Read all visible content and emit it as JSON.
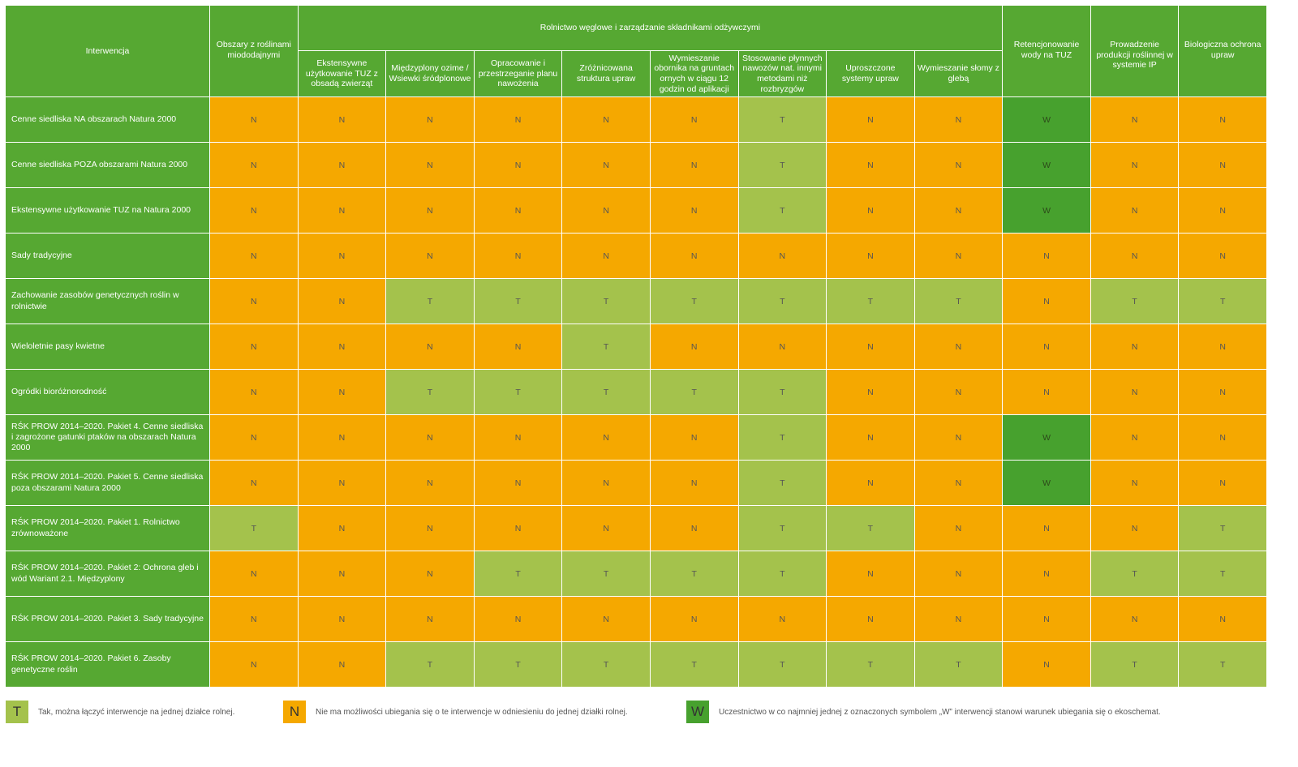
{
  "header": {
    "intervention": "Interwencja",
    "group": "Rolnictwo węglowe i zarządzanie składnikami odżywczymi",
    "columns": [
      "Obszary z roślinami miododajnymi",
      "Ekstensywne użytkowanie TUZ z obsadą zwierząt",
      "Międzyplony ozime / Wsiewki śródplonowe",
      "Opracowanie i przestrzeganie planu nawożenia",
      "Zróżnicowana struktura upraw",
      "Wymieszanie obornika na gruntach ornych w ciągu 12 godzin od aplikacji",
      "Stosowanie płynnych nawozów nat. innymi metodami niż rozbryzgów",
      "Uproszczone systemy upraw",
      "Wymieszanie słomy z glebą",
      "Retencjonowanie wody na TUZ",
      "Prowadzenie produkcji roślinnej w systemie IP",
      "Biologiczna ochrona upraw"
    ]
  },
  "rows": [
    {
      "label": "Cenne siedliska NA obszarach Natura 2000",
      "cells": [
        "N",
        "N",
        "N",
        "N",
        "N",
        "N",
        "T",
        "N",
        "N",
        "W",
        "N",
        "N"
      ]
    },
    {
      "label": "Cenne siedliska POZA obszarami Natura 2000",
      "cells": [
        "N",
        "N",
        "N",
        "N",
        "N",
        "N",
        "T",
        "N",
        "N",
        "W",
        "N",
        "N"
      ]
    },
    {
      "label": "Ekstensywne użytkowanie TUZ na Natura 2000",
      "cells": [
        "N",
        "N",
        "N",
        "N",
        "N",
        "N",
        "T",
        "N",
        "N",
        "W",
        "N",
        "N"
      ]
    },
    {
      "label": "Sady tradycyjne",
      "cells": [
        "N",
        "N",
        "N",
        "N",
        "N",
        "N",
        "N",
        "N",
        "N",
        "N",
        "N",
        "N"
      ]
    },
    {
      "label": "Zachowanie zasobów genetycznych roślin w rolnictwie",
      "cells": [
        "N",
        "N",
        "T",
        "T",
        "T",
        "T",
        "T",
        "T",
        "T",
        "N",
        "T",
        "T"
      ]
    },
    {
      "label": "Wieloletnie pasy kwietne",
      "cells": [
        "N",
        "N",
        "N",
        "N",
        "T",
        "N",
        "N",
        "N",
        "N",
        "N",
        "N",
        "N"
      ]
    },
    {
      "label": "Ogródki bioróżnorodność",
      "cells": [
        "N",
        "N",
        "T",
        "T",
        "T",
        "T",
        "T",
        "N",
        "N",
        "N",
        "N",
        "N"
      ]
    },
    {
      "label": "RŚK PROW 2014–2020. Pakiet 4. Cenne siedliska i zagrożone gatunki ptaków na obszarach Natura 2000",
      "cells": [
        "N",
        "N",
        "N",
        "N",
        "N",
        "N",
        "T",
        "N",
        "N",
        "W",
        "N",
        "N"
      ]
    },
    {
      "label": "RŚK PROW 2014–2020. Pakiet 5. Cenne siedliska poza obszarami Natura 2000",
      "cells": [
        "N",
        "N",
        "N",
        "N",
        "N",
        "N",
        "T",
        "N",
        "N",
        "W",
        "N",
        "N"
      ]
    },
    {
      "label": "RŚK PROW 2014–2020. Pakiet 1. Rolnictwo zrównoważone",
      "cells": [
        "T",
        "N",
        "N",
        "N",
        "N",
        "N",
        "T",
        "T",
        "N",
        "N",
        "N",
        "T"
      ]
    },
    {
      "label": "RŚK PROW 2014–2020. Pakiet 2: Ochrona gleb i wód Wariant 2.1. Międzyplony",
      "cells": [
        "N",
        "N",
        "N",
        "T",
        "T",
        "T",
        "T",
        "N",
        "N",
        "N",
        "T",
        "T"
      ]
    },
    {
      "label": "RŚK PROW 2014–2020. Pakiet 3. Sady tradycyjne",
      "cells": [
        "N",
        "N",
        "N",
        "N",
        "N",
        "N",
        "N",
        "N",
        "N",
        "N",
        "N",
        "N"
      ]
    },
    {
      "label": "RŚK PROW 2014–2020. Pakiet 6. Zasoby genetyczne roślin",
      "cells": [
        "N",
        "N",
        "T",
        "T",
        "T",
        "T",
        "T",
        "T",
        "T",
        "N",
        "T",
        "T"
      ]
    }
  ],
  "legend": [
    {
      "symbol": "T",
      "text": "Tak, można łączyć interwencje na jednej działce rolnej.",
      "color": "#a4c24c"
    },
    {
      "symbol": "N",
      "text": "Nie ma możliwości ubiegania się o te interwencje w odniesieniu do jednej działki rolnej.",
      "color": "#f5a800"
    },
    {
      "symbol": "W",
      "text": "Uczestnictwo w co najmniej jednej z oznaczonych symbolem „W” interwencji stanowi warunek ubiegania się o ekoschemat.",
      "color": "#47a12e"
    }
  ],
  "colors": {
    "header": "#56a832",
    "T": "#a4c24c",
    "N": "#f5a800",
    "W": "#47a12e"
  }
}
